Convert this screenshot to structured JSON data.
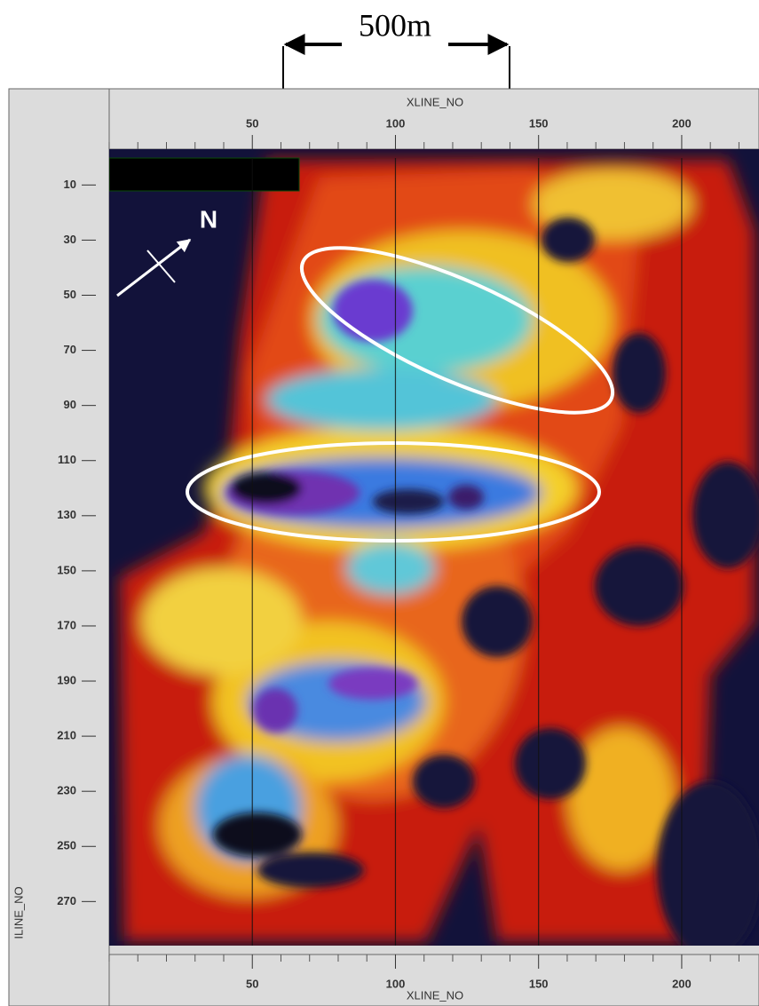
{
  "scale_bar": {
    "label": "500m"
  },
  "north_label": "N",
  "x_axis": {
    "title": "XLINE_NO",
    "xlim": [
      0,
      227
    ],
    "xticks": [
      50,
      100,
      150,
      200
    ]
  },
  "y_axis": {
    "title": "ILINE_NO",
    "ylim": [
      -3,
      286
    ],
    "yticks": [
      10,
      30,
      50,
      70,
      90,
      110,
      130,
      150,
      170,
      190,
      210,
      230,
      250,
      270
    ]
  }
}
